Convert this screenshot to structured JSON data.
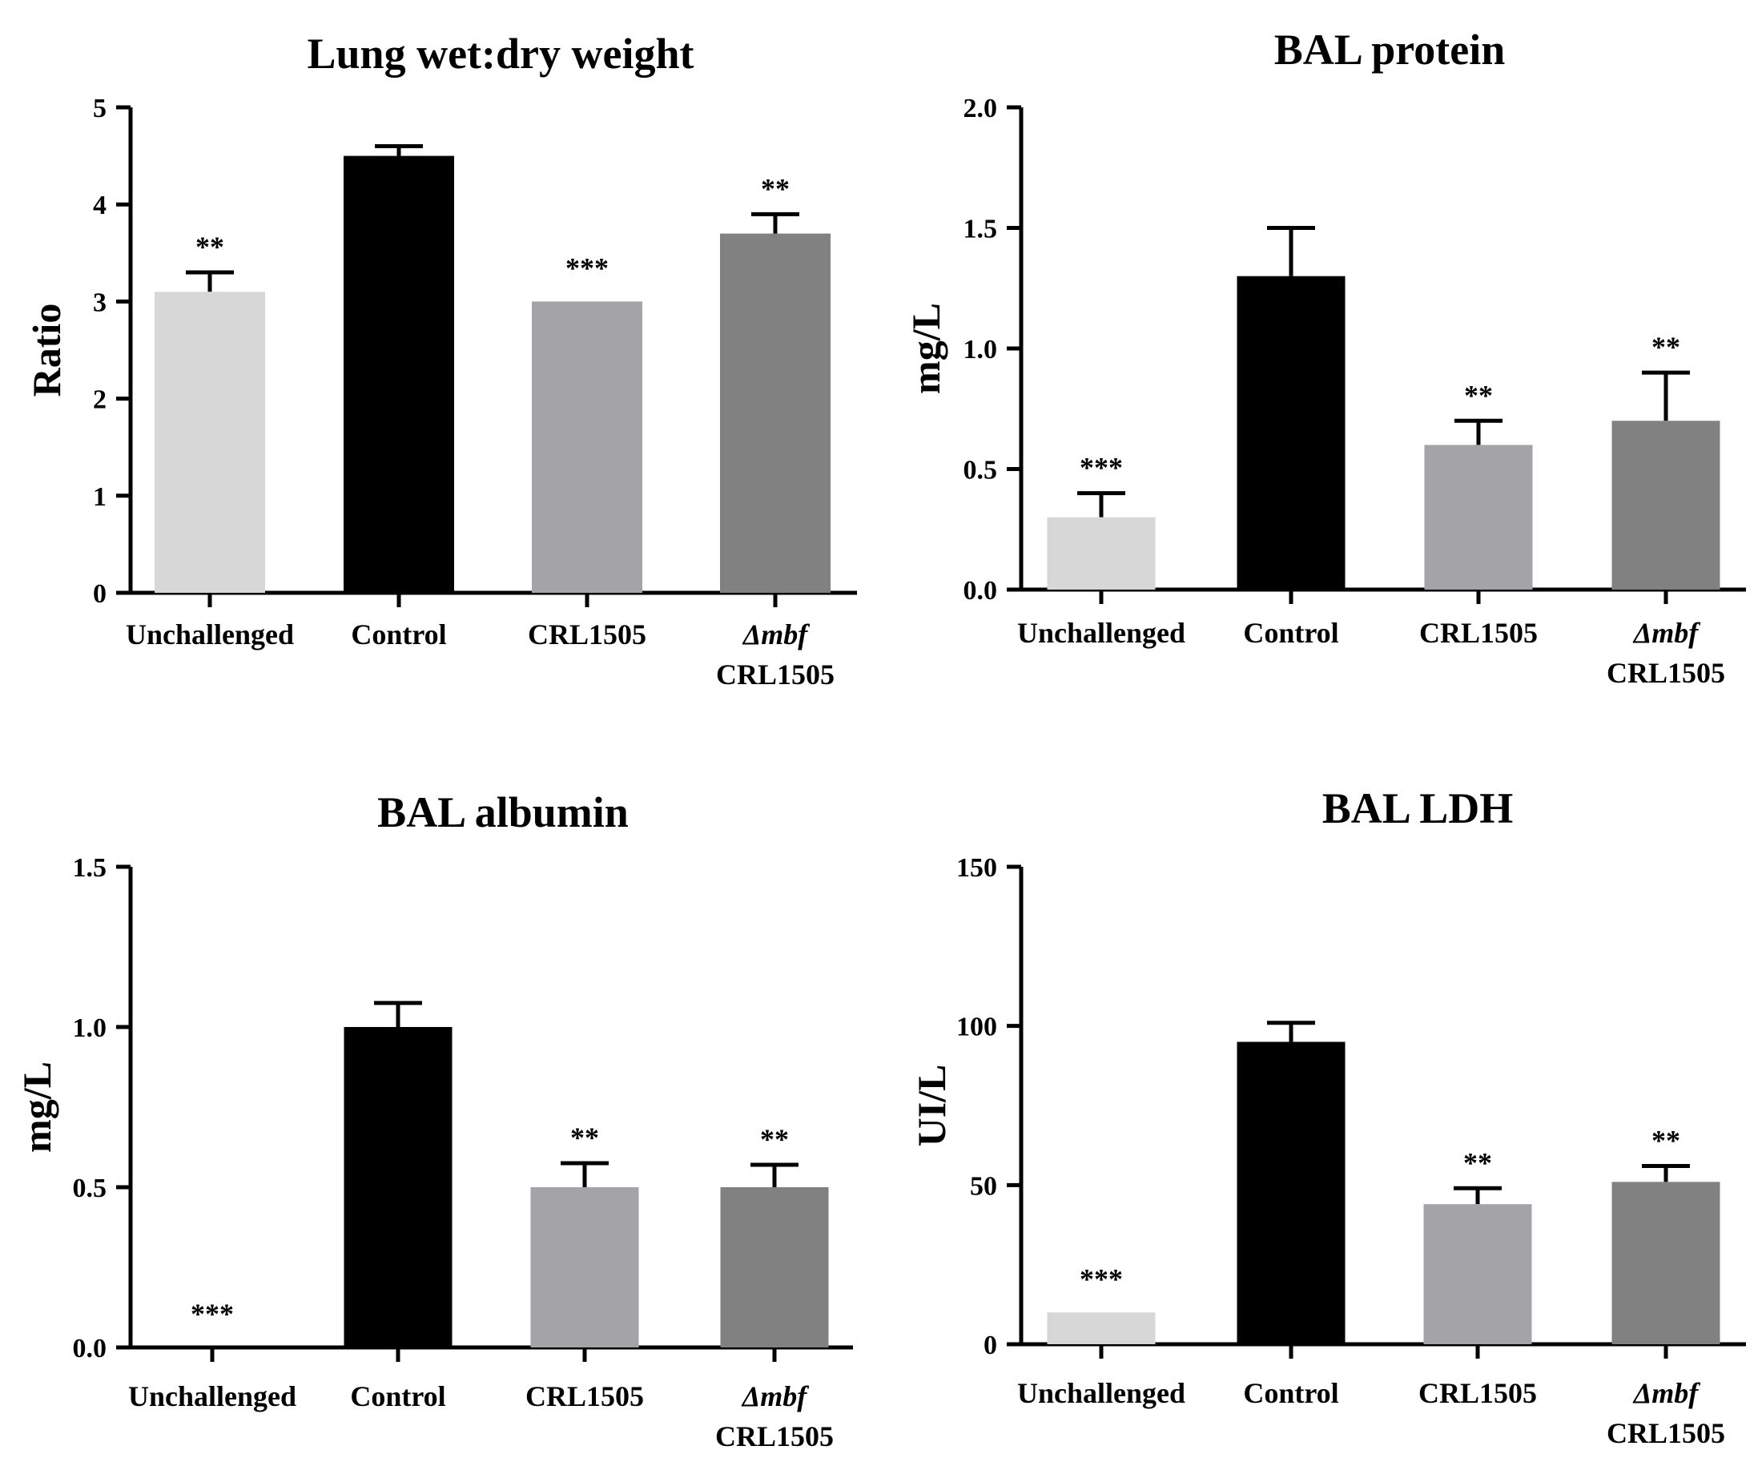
{
  "colors": {
    "unchallenged": "#d7d7d7",
    "control": "#000000",
    "crl1505": "#a4a3a8",
    "dmbf_crl1505": "#818181"
  },
  "chart_data": [
    {
      "type": "bar",
      "title": "Lung wet:dry weight",
      "xlabel": "",
      "ylabel": "Ratio",
      "ylim": [
        0,
        5
      ],
      "yticks": [
        "0",
        "1",
        "2",
        "3",
        "4",
        "5"
      ],
      "categories": [
        {
          "line1": "Unchallenged",
          "line2": "",
          "italic": false
        },
        {
          "line1": "Control",
          "line2": "",
          "italic": false
        },
        {
          "line1": "CRL1505",
          "line2": "",
          "italic": false
        },
        {
          "line1": "Δmbf",
          "line2": "CRL1505",
          "italic": true
        }
      ],
      "values": [
        3.1,
        4.5,
        3.0,
        3.7
      ],
      "errors": [
        0.2,
        0.1,
        0.0,
        0.2
      ],
      "significance": [
        "**",
        "",
        "***",
        "**"
      ]
    },
    {
      "type": "bar",
      "title": "BAL protein",
      "xlabel": "",
      "ylabel": "mg/L",
      "ylim": [
        0,
        2.0
      ],
      "yticks": [
        "0.0",
        "0.5",
        "1.0",
        "1.5",
        "2.0"
      ],
      "categories": [
        {
          "line1": "Unchallenged",
          "line2": "",
          "italic": false
        },
        {
          "line1": "Control",
          "line2": "",
          "italic": false
        },
        {
          "line1": "CRL1505",
          "line2": "",
          "italic": false
        },
        {
          "line1": "Δmbf",
          "line2": "CRL1505",
          "italic": true
        }
      ],
      "values": [
        0.3,
        1.3,
        0.6,
        0.7
      ],
      "errors": [
        0.1,
        0.2,
        0.1,
        0.2
      ],
      "significance": [
        "***",
        "",
        "**",
        "**"
      ]
    },
    {
      "type": "bar",
      "title": "BAL albumin",
      "xlabel": "",
      "ylabel": "mg/L",
      "ylim": [
        0,
        1.5
      ],
      "yticks": [
        "0.0",
        "0.5",
        "1.0",
        "1.5"
      ],
      "categories": [
        {
          "line1": "Unchallenged",
          "line2": "",
          "italic": false
        },
        {
          "line1": "Control",
          "line2": "",
          "italic": false
        },
        {
          "line1": "CRL1505",
          "line2": "",
          "italic": false
        },
        {
          "line1": "Δmbf",
          "line2": "CRL1505",
          "italic": true
        }
      ],
      "values": [
        0.0,
        1.0,
        0.5,
        0.5
      ],
      "errors": [
        0.0,
        0.075,
        0.075,
        0.07
      ],
      "significance": [
        "***",
        "",
        "**",
        "**"
      ]
    },
    {
      "type": "bar",
      "title": "BAL LDH",
      "xlabel": "",
      "ylabel": "UI/L",
      "ylim": [
        0,
        150
      ],
      "yticks": [
        "0",
        "50",
        "100",
        "150"
      ],
      "categories": [
        {
          "line1": "Unchallenged",
          "line2": "",
          "italic": false
        },
        {
          "line1": "Control",
          "line2": "",
          "italic": false
        },
        {
          "line1": "CRL1505",
          "line2": "",
          "italic": false
        },
        {
          "line1": "Δmbf",
          "line2": "CRL1505",
          "italic": true
        }
      ],
      "values": [
        10,
        95,
        44,
        51
      ],
      "errors": [
        0,
        6,
        5,
        5
      ],
      "significance": [
        "***",
        "",
        "**",
        "**"
      ]
    }
  ]
}
